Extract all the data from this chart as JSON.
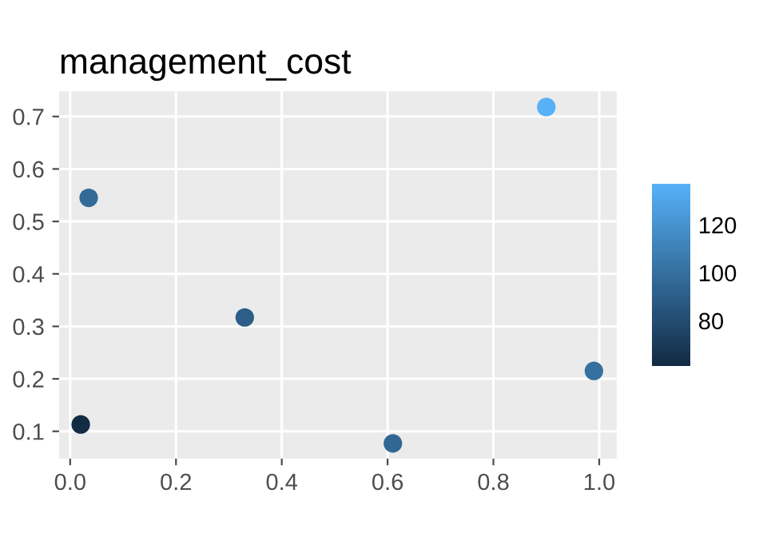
{
  "chart_data": {
    "type": "scatter",
    "title": "management_cost",
    "x": [
      0.02,
      0.035,
      0.33,
      0.61,
      0.9,
      0.99
    ],
    "values": [
      0.113,
      0.545,
      0.317,
      0.077,
      0.718,
      0.215
    ],
    "cvalues": [
      61,
      97,
      90,
      95,
      137,
      100
    ],
    "clim": [
      61,
      137
    ],
    "cticks": [
      80,
      100,
      120
    ],
    "xlim": [
      -0.021,
      1.033
    ],
    "ylim": [
      0.048,
      0.748
    ],
    "xticks": [
      {
        "value": 0,
        "label": "0.0"
      },
      0.2,
      0.4,
      0.6,
      0.8,
      {
        "value": 1,
        "label": "1.0"
      }
    ],
    "yticks": [
      0.1,
      0.2,
      0.3,
      0.4,
      0.5,
      0.6,
      0.7
    ],
    "grid": true,
    "marker": "circle"
  }
}
